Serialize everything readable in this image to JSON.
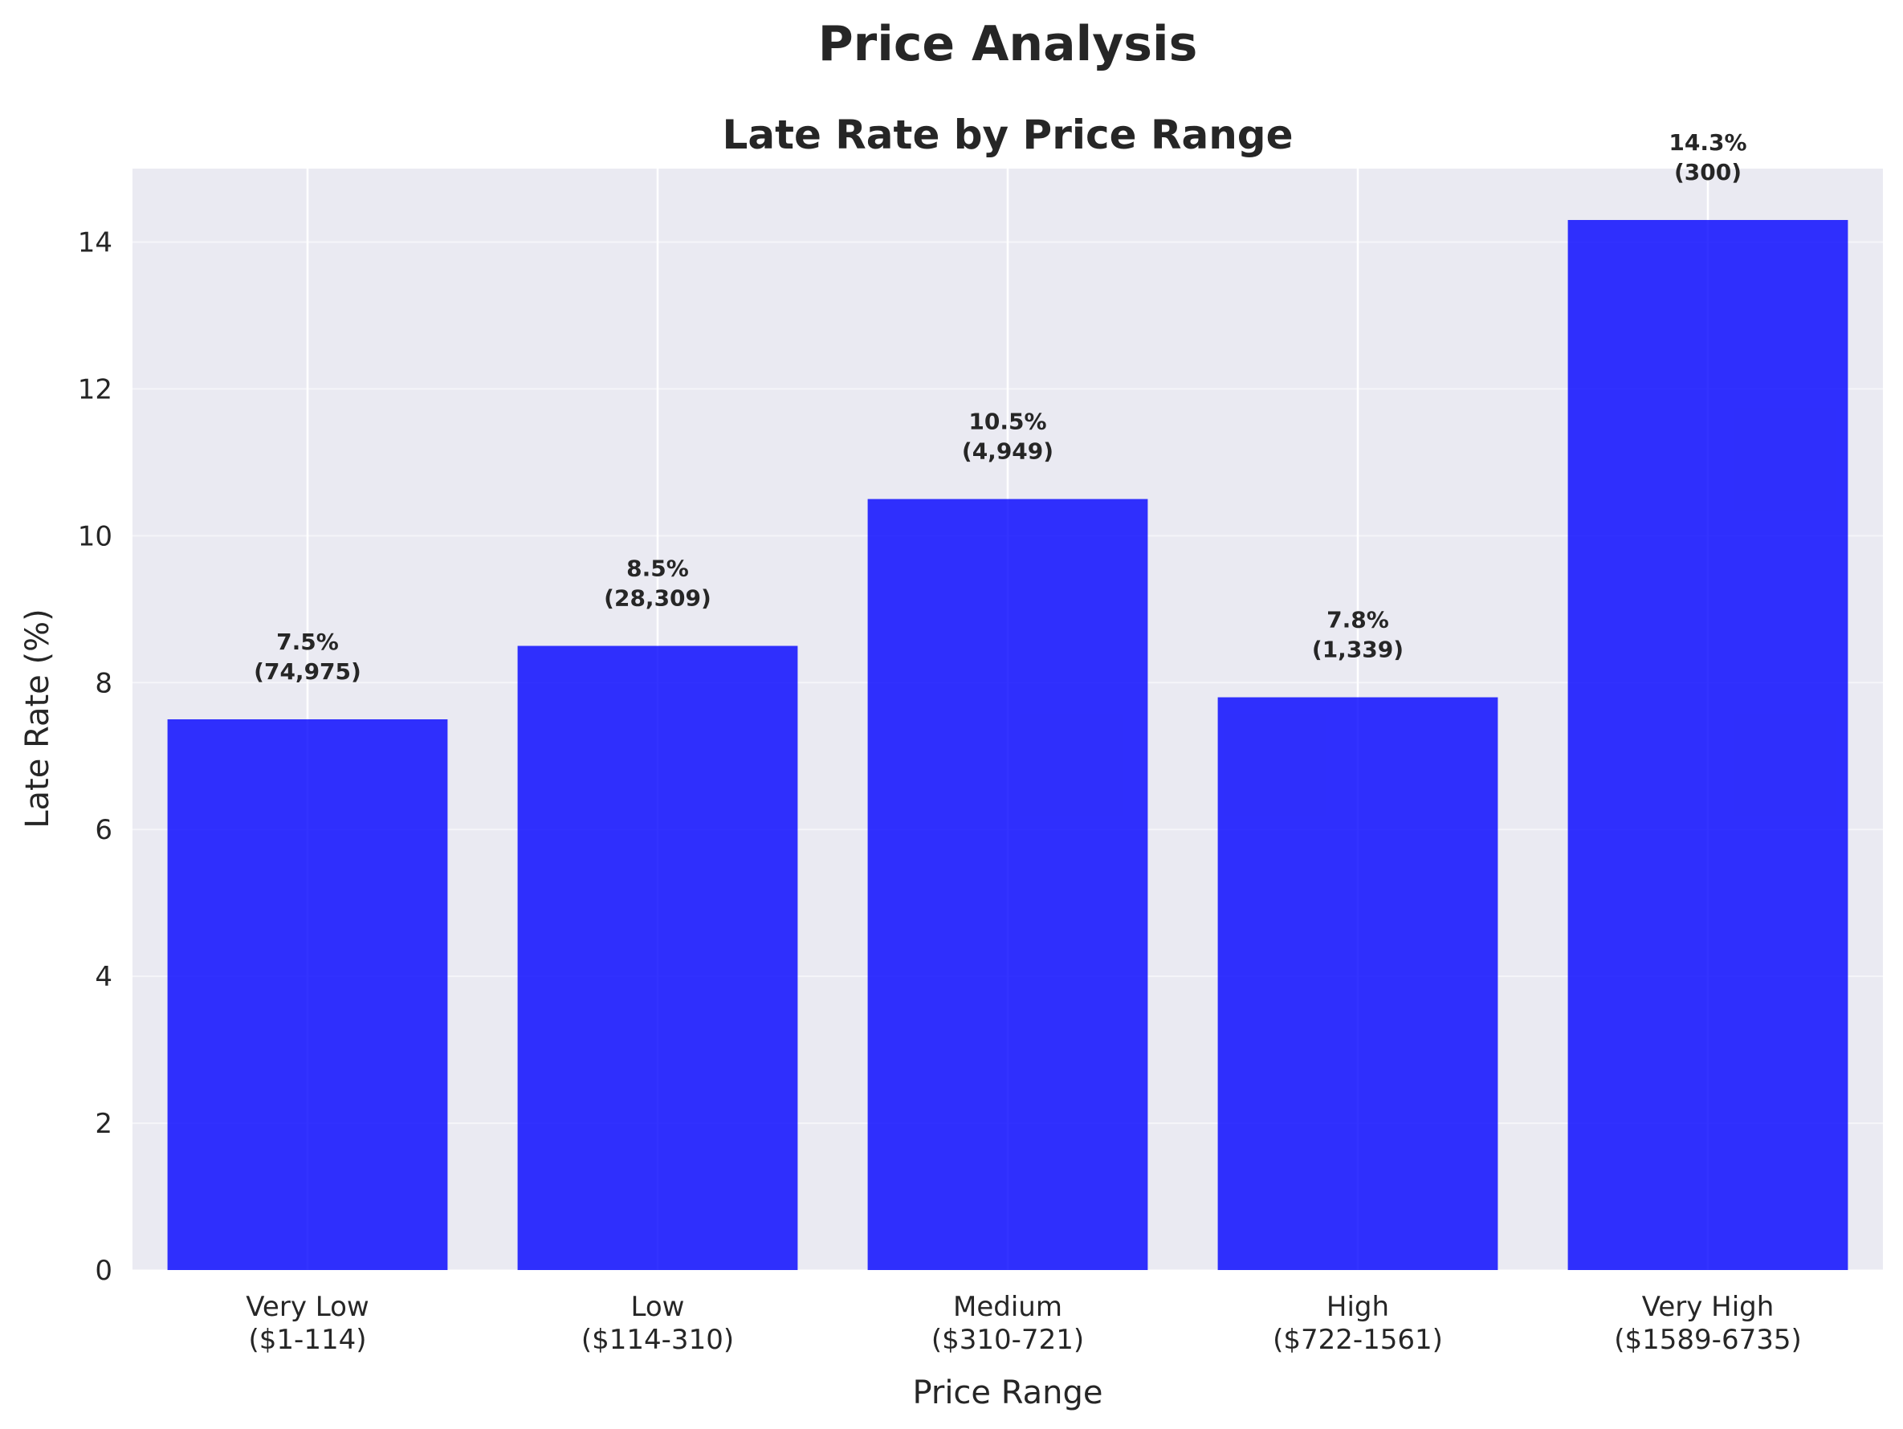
{
  "suptitle": "Price Analysis",
  "chart_data": {
    "type": "bar",
    "title": "Late Rate by Price Range",
    "xlabel": "Price Range",
    "ylabel": "Late Rate (%)",
    "categories": [
      [
        "Very Low",
        "($1-114)"
      ],
      [
        "Low",
        "($114-310)"
      ],
      [
        "Medium",
        "($310-721)"
      ],
      [
        "High",
        "($722-1561)"
      ],
      [
        "Very High",
        "($1589-6735)"
      ]
    ],
    "values": [
      7.5,
      8.5,
      10.5,
      7.8,
      14.3
    ],
    "data_labels": [
      [
        "7.5%",
        "(74,975)"
      ],
      [
        "8.5%",
        "(28,309)"
      ],
      [
        "10.5%",
        "(4,949)"
      ],
      [
        "7.8%",
        "(1,339)"
      ],
      [
        "14.3%",
        "(300)"
      ]
    ],
    "ylim": [
      0,
      15
    ],
    "yticks": [
      0,
      2,
      4,
      6,
      8,
      10,
      12,
      14
    ],
    "grid": true,
    "colors": {
      "bar": "#0000ff",
      "plot_background": "#eaeaf2",
      "grid": "#ffffff",
      "text": "#262626"
    }
  }
}
